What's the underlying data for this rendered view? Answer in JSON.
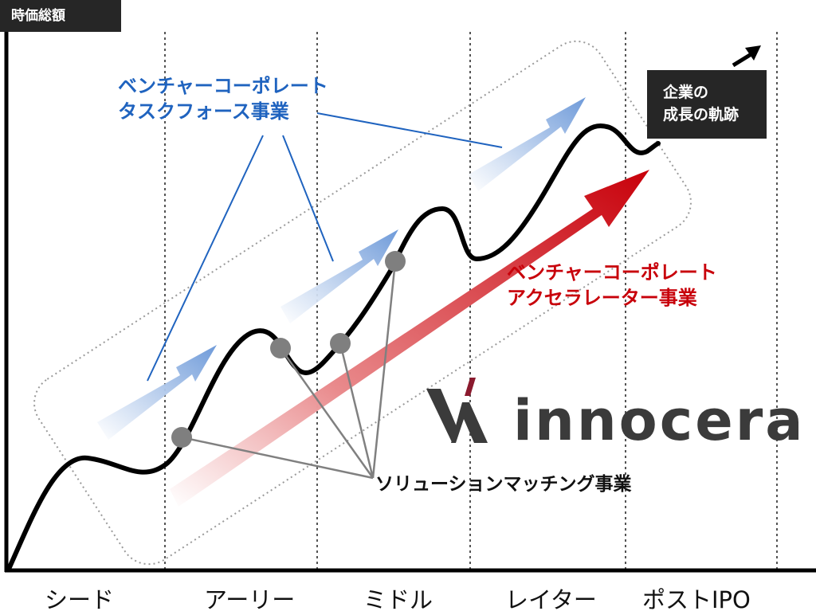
{
  "y_axis_label": "時価総額",
  "stages": [
    "シード",
    "アーリー",
    "ミドル",
    "レイター",
    "ポストIPO"
  ],
  "callouts": {
    "taskforce": [
      "ベンチャーコーポレート",
      "タスクフォース事業"
    ],
    "accelerator": [
      "ベンチャーコーポレート",
      "アクセラレーター事業"
    ],
    "solution_matching": "ソリューションマッチング事業",
    "growth_trajectory": [
      "企業の",
      "成長の軌跡"
    ]
  },
  "logo": {
    "brand_text": "innocera",
    "mark_colors": {
      "v": "#3b3b3b",
      "accent": "#8b1a2e",
      "a": "#3b3b3b"
    }
  },
  "colors": {
    "taskforce_blue": "#1f63bf",
    "accelerator_red": "#c8000a",
    "arrow_blue": "#6e9ad9",
    "curve": "#000000",
    "dot": "#7f7f7f",
    "label_box": "#262626"
  },
  "icons": {
    "growth_arrow": "arrow-up-right-icon",
    "logo_mark": "va-logo-icon"
  }
}
